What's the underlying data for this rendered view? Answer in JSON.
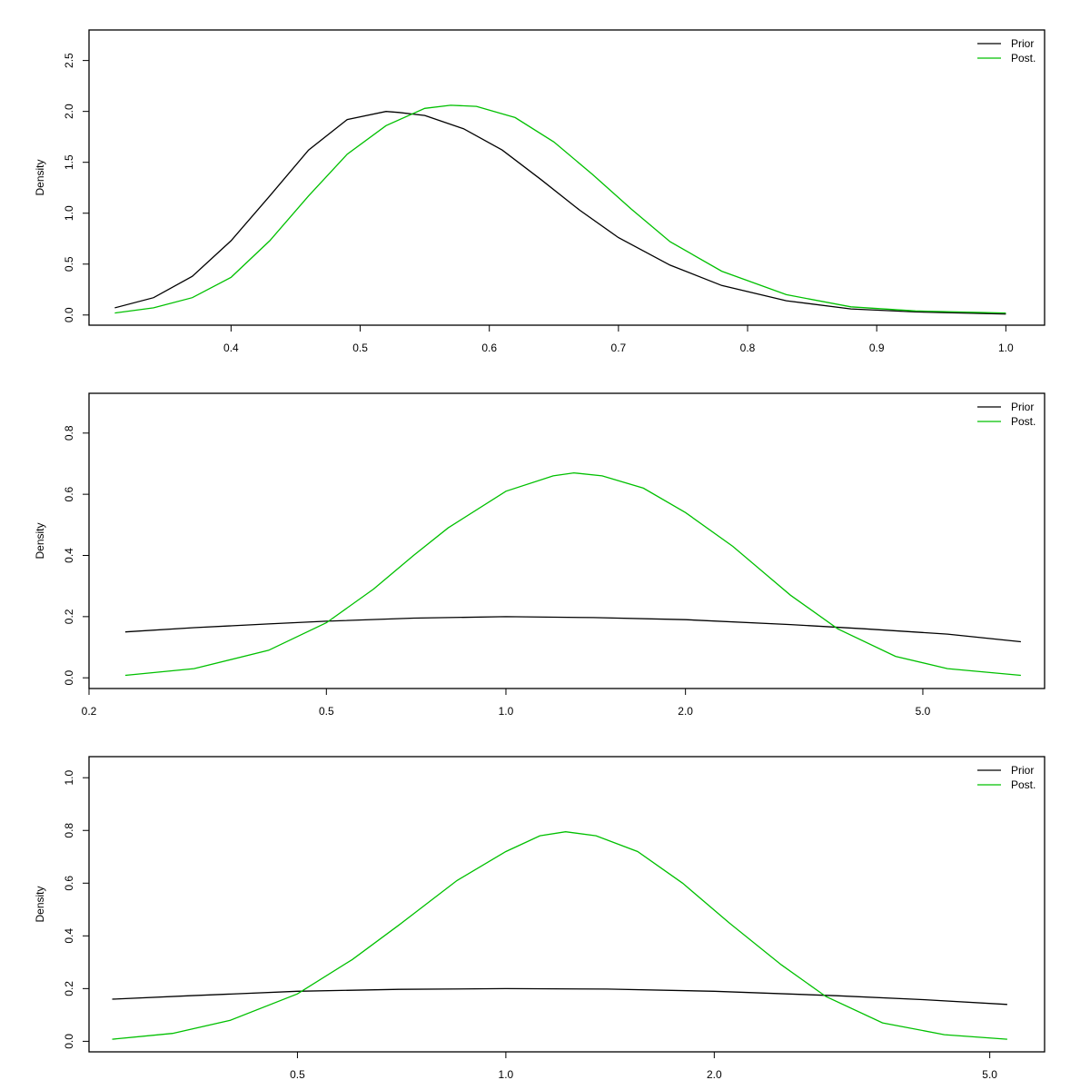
{
  "chart_data": [
    {
      "type": "line",
      "x_scale": "linear",
      "xlim": [
        0.29,
        1.03
      ],
      "ylim": [
        -0.1,
        2.8
      ],
      "xticks": [
        0.4,
        0.5,
        0.6,
        0.7,
        0.8,
        0.9,
        1.0
      ],
      "xtick_labels": [
        "0.4",
        "0.5",
        "0.6",
        "0.7",
        "0.8",
        "0.9",
        "1.0"
      ],
      "yticks": [
        0,
        0.5,
        1.0,
        1.5,
        2.0,
        2.5
      ],
      "ytick_labels": [
        "0.0",
        "0.5",
        "1.0",
        "1.5",
        "2.0",
        "2.5"
      ],
      "xlabel": "",
      "ylabel": "Density",
      "legend": {
        "position": "top-right",
        "entries": [
          "Prior",
          "Post."
        ]
      },
      "series": [
        {
          "name": "Prior",
          "color": "#000000",
          "x": [
            0.31,
            0.34,
            0.37,
            0.4,
            0.43,
            0.46,
            0.49,
            0.52,
            0.53,
            0.55,
            0.58,
            0.61,
            0.64,
            0.67,
            0.7,
            0.74,
            0.78,
            0.83,
            0.88,
            0.93,
            1.0
          ],
          "y": [
            0.07,
            0.17,
            0.38,
            0.73,
            1.17,
            1.62,
            1.92,
            2.0,
            1.99,
            1.96,
            1.83,
            1.62,
            1.33,
            1.03,
            0.76,
            0.49,
            0.29,
            0.14,
            0.06,
            0.03,
            0.01
          ]
        },
        {
          "name": "Post.",
          "color": "#00c000",
          "x": [
            0.31,
            0.34,
            0.37,
            0.4,
            0.43,
            0.46,
            0.49,
            0.52,
            0.55,
            0.57,
            0.59,
            0.62,
            0.65,
            0.68,
            0.71,
            0.74,
            0.78,
            0.83,
            0.88,
            0.93,
            1.0
          ],
          "y": [
            0.02,
            0.07,
            0.17,
            0.37,
            0.73,
            1.17,
            1.58,
            1.86,
            2.03,
            2.06,
            2.05,
            1.94,
            1.7,
            1.38,
            1.04,
            0.72,
            0.43,
            0.2,
            0.08,
            0.04,
            0.02
          ]
        }
      ]
    },
    {
      "type": "line",
      "x_scale": "log",
      "xlim": [
        0.2,
        8.0
      ],
      "ylim": [
        -0.035,
        0.93
      ],
      "xticks": [
        0.2,
        0.5,
        1.0,
        2.0,
        5.0
      ],
      "xtick_labels": [
        "0.2",
        "0.5",
        "1.0",
        "2.0",
        "5.0"
      ],
      "yticks": [
        0,
        0.2,
        0.4,
        0.6,
        0.8
      ],
      "ytick_labels": [
        "0.0",
        "0.2",
        "0.4",
        "0.6",
        "0.8"
      ],
      "xlabel": "",
      "ylabel": "Density",
      "legend": {
        "position": "top-right",
        "entries": [
          "Prior",
          "Post."
        ]
      },
      "series": [
        {
          "name": "Prior",
          "color": "#000000",
          "x": [
            0.23,
            0.3,
            0.4,
            0.5,
            0.7,
            1.0,
            1.4,
            2.0,
            3.0,
            4.0,
            5.5,
            7.3
          ],
          "y": [
            0.15,
            0.164,
            0.176,
            0.185,
            0.195,
            0.2,
            0.197,
            0.19,
            0.174,
            0.16,
            0.143,
            0.118
          ]
        },
        {
          "name": "Post.",
          "color": "#00c000",
          "x": [
            0.23,
            0.3,
            0.4,
            0.5,
            0.6,
            0.7,
            0.8,
            1.0,
            1.2,
            1.3,
            1.45,
            1.7,
            2.0,
            2.4,
            3.0,
            3.6,
            4.5,
            5.5,
            7.3
          ],
          "y": [
            0.008,
            0.03,
            0.09,
            0.18,
            0.29,
            0.4,
            0.49,
            0.61,
            0.66,
            0.67,
            0.66,
            0.62,
            0.54,
            0.43,
            0.27,
            0.16,
            0.07,
            0.03,
            0.008
          ]
        }
      ]
    },
    {
      "type": "line",
      "x_scale": "log",
      "xlim": [
        0.25,
        6.0
      ],
      "ylim": [
        -0.04,
        1.08
      ],
      "xticks": [
        0.5,
        1.0,
        2.0,
        5.0
      ],
      "xtick_labels": [
        "0.5",
        "1.0",
        "2.0",
        "5.0"
      ],
      "yticks": [
        0,
        0.2,
        0.4,
        0.6,
        0.8,
        1.0
      ],
      "ytick_labels": [
        "0.0",
        "0.2",
        "0.4",
        "0.6",
        "0.8",
        "1.0"
      ],
      "xlabel": "",
      "ylabel": "Density",
      "legend": {
        "position": "top-right",
        "entries": [
          "Prior",
          "Post."
        ]
      },
      "series": [
        {
          "name": "Prior",
          "color": "#000000",
          "x": [
            0.27,
            0.35,
            0.5,
            0.7,
            1.0,
            1.4,
            2.0,
            3.0,
            4.0,
            5.3
          ],
          "y": [
            0.16,
            0.173,
            0.19,
            0.197,
            0.2,
            0.198,
            0.19,
            0.173,
            0.158,
            0.14
          ]
        },
        {
          "name": "Post.",
          "color": "#00c000",
          "x": [
            0.27,
            0.33,
            0.4,
            0.5,
            0.6,
            0.7,
            0.85,
            1.0,
            1.12,
            1.22,
            1.35,
            1.55,
            1.8,
            2.1,
            2.5,
            2.9,
            3.5,
            4.3,
            5.3
          ],
          "y": [
            0.008,
            0.03,
            0.08,
            0.18,
            0.31,
            0.44,
            0.61,
            0.72,
            0.78,
            0.795,
            0.78,
            0.72,
            0.6,
            0.45,
            0.29,
            0.17,
            0.07,
            0.025,
            0.008
          ]
        }
      ]
    }
  ]
}
